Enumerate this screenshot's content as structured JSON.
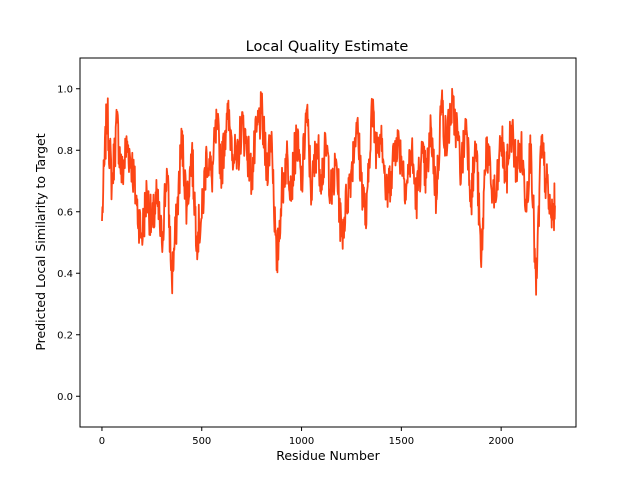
{
  "chart_data": {
    "type": "line",
    "title": "Local Quality Estimate",
    "xlabel": "Residue Number",
    "ylabel": "Predicted Local Similarity to Target",
    "xlim": [
      -110,
      2375
    ],
    "ylim": [
      -0.1,
      1.1
    ],
    "xticks": [
      0,
      500,
      1000,
      1500,
      2000
    ],
    "yticks": [
      0.0,
      0.2,
      0.4,
      0.6,
      0.8,
      1.0
    ],
    "ytick_labels": [
      "0.0",
      "0.2",
      "0.4",
      "0.6",
      "0.8",
      "1.0"
    ],
    "grid": false,
    "legend": "none",
    "line_color": "#fc4515",
    "n_points": 2270,
    "sampled_step": 25,
    "series": [
      {
        "x": [
          0,
          25,
          50,
          75,
          100,
          125,
          150,
          175,
          200,
          225,
          250,
          275,
          300,
          325,
          350,
          375,
          400,
          425,
          450,
          475,
          500,
          525,
          550,
          575,
          600,
          625,
          650,
          675,
          700,
          725,
          750,
          775,
          800,
          825,
          850,
          875,
          900,
          925,
          950,
          975,
          1000,
          1025,
          1050,
          1075,
          1100,
          1125,
          1150,
          1175,
          1200,
          1225,
          1250,
          1275,
          1300,
          1325,
          1350,
          1375,
          1400,
          1425,
          1450,
          1475,
          1500,
          1525,
          1550,
          1575,
          1600,
          1625,
          1650,
          1675,
          1700,
          1725,
          1750,
          1775,
          1800,
          1825,
          1850,
          1875,
          1900,
          1925,
          1950,
          1975,
          2000,
          2025,
          2050,
          2075,
          2100,
          2125,
          2150,
          2175,
          2200,
          2225,
          2250,
          2270
        ],
        "y": [
          0.57,
          0.93,
          0.69,
          0.89,
          0.71,
          0.82,
          0.76,
          0.62,
          0.52,
          0.66,
          0.55,
          0.64,
          0.5,
          0.74,
          0.38,
          0.58,
          0.84,
          0.62,
          0.79,
          0.52,
          0.58,
          0.79,
          0.71,
          0.88,
          0.74,
          0.92,
          0.84,
          0.74,
          0.89,
          0.82,
          0.71,
          0.86,
          0.92,
          0.74,
          0.86,
          0.41,
          0.66,
          0.78,
          0.69,
          0.84,
          0.68,
          0.93,
          0.66,
          0.82,
          0.72,
          0.81,
          0.65,
          0.76,
          0.52,
          0.63,
          0.74,
          0.89,
          0.71,
          0.56,
          0.94,
          0.81,
          0.88,
          0.64,
          0.73,
          0.84,
          0.78,
          0.68,
          0.8,
          0.64,
          0.78,
          0.71,
          0.87,
          0.64,
          0.96,
          0.82,
          0.94,
          0.88,
          0.73,
          0.9,
          0.65,
          0.82,
          0.42,
          0.84,
          0.68,
          0.64,
          0.84,
          0.7,
          0.88,
          0.75,
          0.8,
          0.64,
          0.82,
          0.33,
          0.81,
          0.7,
          0.58,
          0.62
        ]
      }
    ]
  }
}
